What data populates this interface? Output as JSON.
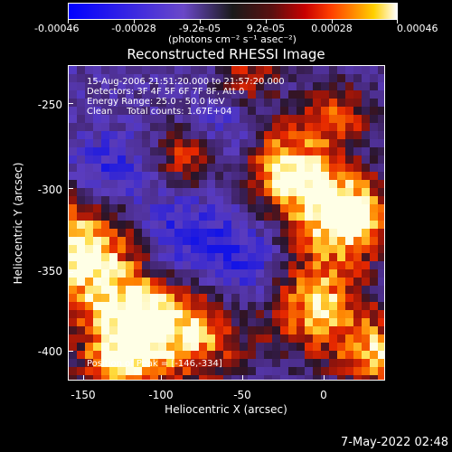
{
  "colorbar": {
    "tick_labels": [
      "-0.00046",
      "-0.00028",
      "-9.2e-05",
      "9.2e-05",
      "0.00028",
      "0.00046"
    ],
    "units_label": "(photons cm⁻² s⁻¹ asec⁻²)"
  },
  "title": "Reconstructed RHESSI Image",
  "info": {
    "line1": "15-Aug-2006 21:51:20.000 to 21:57:20.000",
    "line2": "Detectors: 3F 4F 5F 6F 7F 8F, Att 0",
    "line3": "Energy Range: 25.0 - 50.0 keV",
    "line4": "Clean     Total counts: 1.67E+04"
  },
  "peak": "Position of Peak = [-146,-334]",
  "axes": {
    "xlabel": "Heliocentric X (arcsec)",
    "ylabel": "Heliocentric Y (arcsec)",
    "x_ticks": [
      "-150",
      "-100",
      "-50",
      "0"
    ],
    "y_ticks": [
      "-250",
      "-300",
      "-350",
      "-400"
    ]
  },
  "timestamp": "7-May-2022 02:48",
  "colors": {
    "background": "#000000",
    "low": "#0000ff",
    "mid": "#3a1a6e",
    "high": "#ffffff"
  },
  "chart_data": {
    "type": "heatmap",
    "title": "Reconstructed RHESSI Image",
    "xlabel": "Heliocentric X (arcsec)",
    "ylabel": "Heliocentric Y (arcsec)",
    "xlim": [
      -155,
      30
    ],
    "ylim": [
      -420,
      -235
    ],
    "colorbar_range": [
      -0.00046,
      0.00046
    ],
    "peak_position": [
      -146,
      -334
    ]
  }
}
